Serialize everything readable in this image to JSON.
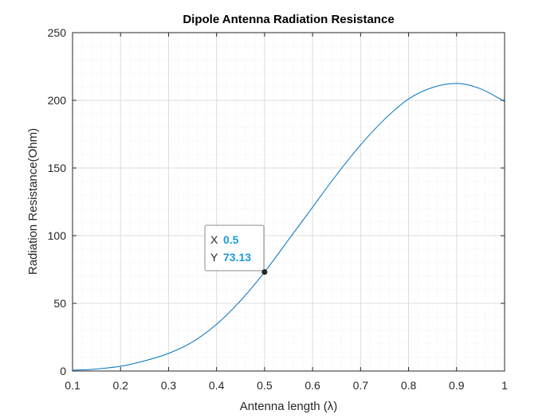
{
  "chart_data": {
    "type": "line",
    "title": "Dipole Antenna Radiation Resistance",
    "xlabel": "Antenna length (λ)",
    "ylabel": "Radiation Resistance(Ohm)",
    "xlim": [
      0.1,
      1
    ],
    "ylim": [
      0,
      250
    ],
    "xticks": [
      0.1,
      0.2,
      0.3,
      0.4,
      0.5,
      0.6,
      0.7,
      0.8,
      0.9,
      1
    ],
    "xtick_labels": [
      "0.1",
      "0.2",
      "0.3",
      "0.4",
      "0.5",
      "0.6",
      "0.7",
      "0.8",
      "0.9",
      "1"
    ],
    "yticks": [
      0,
      50,
      100,
      150,
      200,
      250
    ],
    "ytick_labels": [
      "0",
      "50",
      "100",
      "150",
      "200",
      "250"
    ],
    "grid": true,
    "minor_grid": true,
    "series": [
      {
        "color": "#0072BD",
        "x": [
          0.1,
          0.15,
          0.2,
          0.25,
          0.3,
          0.35,
          0.4,
          0.45,
          0.5,
          0.55,
          0.6,
          0.65,
          0.7,
          0.75,
          0.8,
          0.85,
          0.9,
          0.95,
          1.0
        ],
        "y": [
          0.5,
          1.5,
          3.5,
          7.5,
          13.0,
          21.5,
          34.5,
          52.0,
          73.13,
          97.0,
          121.0,
          145.0,
          167.0,
          186.0,
          201.0,
          209.5,
          212.5,
          208.5,
          199.1
        ]
      }
    ],
    "datatip": {
      "x_key": "X",
      "x_value": "0.5",
      "y_key": "Y",
      "y_value": "73.13",
      "x": 0.5,
      "y": 73.13
    }
  },
  "colors": {
    "line": "#0072BD",
    "datatip_value": "#1A9AE0",
    "grid_major": "#DCDCDC",
    "grid_minor": "#EDEDED",
    "axis": "#262626"
  }
}
